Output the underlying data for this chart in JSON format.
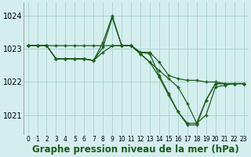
{
  "background_color": "#d4eeee",
  "grid_color": "#add4d4",
  "line_color": "#1a5c1a",
  "xlabel": "Graphe pression niveau de la mer (hPa)",
  "xlabel_fontsize": 8.5,
  "ytick_labels": [
    "1021",
    "1022",
    "1023",
    "1024"
  ],
  "yticks": [
    1021,
    1022,
    1023,
    1024
  ],
  "xticks": [
    0,
    1,
    2,
    3,
    4,
    5,
    6,
    7,
    8,
    9,
    10,
    11,
    12,
    13,
    14,
    15,
    16,
    17,
    18,
    19,
    20,
    21,
    22,
    23
  ],
  "xlim": [
    -0.5,
    23.5
  ],
  "ylim": [
    1020.4,
    1024.4
  ],
  "series": [
    {
      "x": [
        0,
        1,
        2,
        3,
        4,
        5,
        6,
        7,
        8,
        9,
        10,
        11,
        12,
        13,
        14,
        15,
        16,
        17,
        18,
        19,
        20,
        21,
        22,
        23
      ],
      "y": [
        1023.1,
        1023.1,
        1023.1,
        1023.1,
        1023.1,
        1023.1,
        1023.1,
        1023.1,
        1023.1,
        1023.1,
        1023.1,
        1023.1,
        1022.9,
        1022.9,
        1022.6,
        1022.2,
        1022.1,
        1022.05,
        1022.05,
        1022.0,
        1022.0,
        1021.95,
        1021.95,
        1021.95
      ]
    },
    {
      "x": [
        0,
        1,
        2,
        3,
        4,
        5,
        6,
        7,
        8,
        9,
        10,
        11,
        12,
        13,
        14,
        15,
        16,
        17,
        18,
        19,
        20,
        21,
        22,
        23
      ],
      "y": [
        1023.1,
        1023.1,
        1023.1,
        1022.7,
        1022.7,
        1022.7,
        1022.7,
        1022.65,
        1023.05,
        1023.95,
        1023.1,
        1023.1,
        1022.9,
        1022.85,
        1022.2,
        1021.65,
        1021.1,
        1020.7,
        1020.7,
        1021.45,
        1021.95,
        1021.95,
        1021.95,
        1021.95
      ]
    },
    {
      "x": [
        0,
        1,
        2,
        3,
        4,
        5,
        6,
        7,
        8,
        9,
        10,
        11,
        12,
        13,
        14,
        15,
        16,
        17,
        18,
        19,
        20,
        21,
        22,
        23
      ],
      "y": [
        1023.1,
        1023.1,
        1023.1,
        1022.7,
        1022.7,
        1022.7,
        1022.7,
        1022.65,
        1023.2,
        1024.0,
        1023.1,
        1023.1,
        1022.85,
        1022.6,
        1022.15,
        1021.6,
        1021.1,
        1020.75,
        1020.75,
        1021.45,
        1021.95,
        1021.95,
        1021.95,
        1021.95
      ]
    },
    {
      "x": [
        0,
        1,
        2,
        3,
        4,
        5,
        6,
        7,
        8,
        9,
        10,
        11,
        12,
        13,
        14,
        15,
        16,
        17,
        18,
        19,
        20,
        21,
        22,
        23
      ],
      "y": [
        1023.1,
        1023.1,
        1023.1,
        1022.7,
        1022.7,
        1022.7,
        1022.7,
        1022.65,
        1022.9,
        1023.1,
        1023.1,
        1023.1,
        1022.85,
        1022.6,
        1022.35,
        1022.1,
        1021.85,
        1021.35,
        1020.75,
        1021.0,
        1021.85,
        1021.9,
        1021.95,
        1021.95
      ]
    }
  ]
}
